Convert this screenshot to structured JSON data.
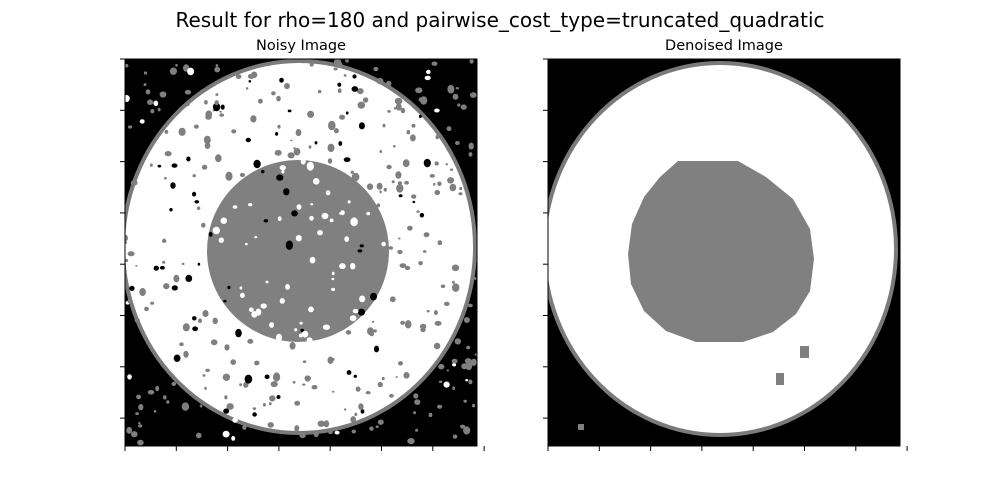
{
  "figure": {
    "title": "Result for rho=180 and pairwise_cost_type=truncated_quadratic"
  },
  "panels": [
    {
      "title": "Noisy Image",
      "content": "noisy concentric disc image"
    },
    {
      "title": "Denoised Image",
      "content": "denoised concentric disc image"
    }
  ],
  "colors": {
    "background_black": "#000000",
    "ring_white": "#ffffff",
    "center_gray": "#808080",
    "noise_gray": "#7f7f7f",
    "axis": "#000000"
  }
}
